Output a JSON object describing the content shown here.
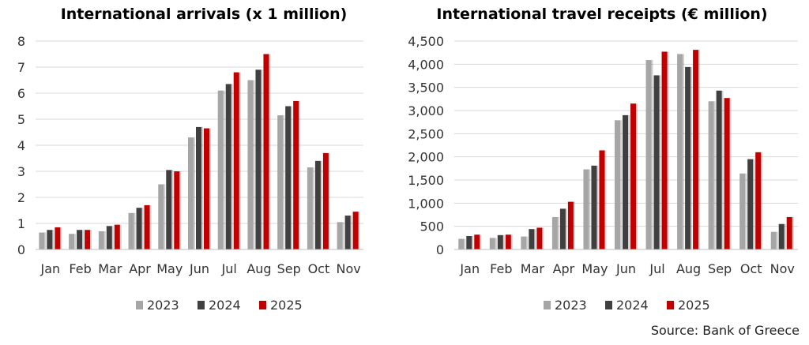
{
  "chart_data": [
    {
      "type": "bar",
      "title": "International arrivals (x 1 million)",
      "categories": [
        "Jan",
        "Feb",
        "Mar",
        "Apr",
        "May",
        "Jun",
        "Jul",
        "Aug",
        "Sep",
        "Oct",
        "Nov"
      ],
      "series": [
        {
          "name": "2023",
          "color": "#A6A6A6",
          "values": [
            0.65,
            0.6,
            0.7,
            1.4,
            2.5,
            4.3,
            6.1,
            6.5,
            5.15,
            3.15,
            1.05
          ]
        },
        {
          "name": "2024",
          "color": "#404040",
          "values": [
            0.75,
            0.75,
            0.9,
            1.6,
            3.05,
            4.7,
            6.35,
            6.9,
            5.5,
            3.4,
            1.3
          ]
        },
        {
          "name": "2025",
          "color": "#C00000",
          "values": [
            0.85,
            0.75,
            0.95,
            1.7,
            3.0,
            4.65,
            6.8,
            7.5,
            5.7,
            3.7,
            1.45
          ]
        }
      ],
      "yticks": [
        "0",
        "1",
        "2",
        "3",
        "4",
        "5",
        "6",
        "7",
        "8"
      ],
      "ylim": [
        0,
        8
      ],
      "grid": true,
      "legend": "bottom"
    },
    {
      "type": "bar",
      "title": "International travel receipts (€ million)",
      "categories": [
        "Jan",
        "Feb",
        "Mar",
        "Apr",
        "May",
        "Jun",
        "Jul",
        "Aug",
        "Sep",
        "Oct",
        "Nov"
      ],
      "series": [
        {
          "name": "2023",
          "color": "#A6A6A6",
          "values": [
            230,
            250,
            280,
            700,
            1730,
            2790,
            4090,
            4220,
            3200,
            1640,
            380
          ]
        },
        {
          "name": "2024",
          "color": "#404040",
          "values": [
            290,
            310,
            440,
            880,
            1810,
            2900,
            3760,
            3940,
            3430,
            1950,
            550
          ]
        },
        {
          "name": "2025",
          "color": "#C00000",
          "values": [
            320,
            320,
            470,
            1030,
            2140,
            3150,
            4270,
            4310,
            3270,
            2100,
            700
          ]
        }
      ],
      "yticks": [
        "0",
        "500",
        "1,000",
        "1,500",
        "2,000",
        "2,500",
        "3,000",
        "3,500",
        "4,000",
        "4,500"
      ],
      "ylim": [
        0,
        4500
      ],
      "grid": true,
      "legend": "bottom"
    }
  ],
  "source": "Source: Bank of Greece"
}
